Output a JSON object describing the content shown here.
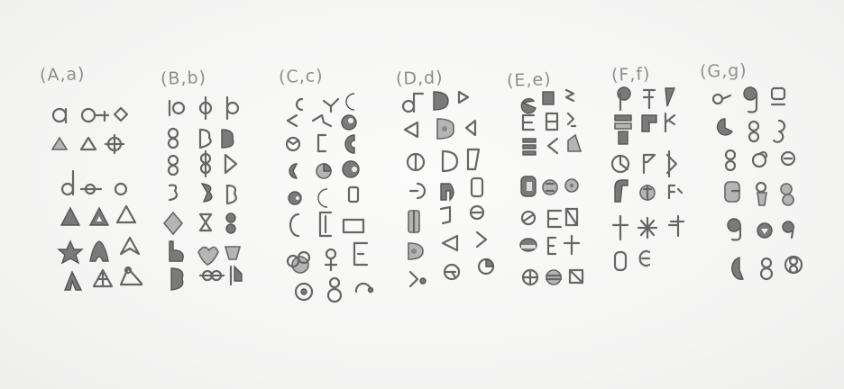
{
  "columns": [
    {
      "id": "A",
      "label": "(A,a)"
    },
    {
      "id": "B",
      "label": "(B,b)"
    },
    {
      "id": "C",
      "label": "(C,c)"
    },
    {
      "id": "D",
      "label": "(D,d)"
    },
    {
      "id": "E",
      "label": "(E,e)"
    },
    {
      "id": "F",
      "label": "(F,f)"
    },
    {
      "id": "G",
      "label": "(G,g)"
    }
  ],
  "medium": "pencil sketch on white paper",
  "ink_color": "#666666"
}
